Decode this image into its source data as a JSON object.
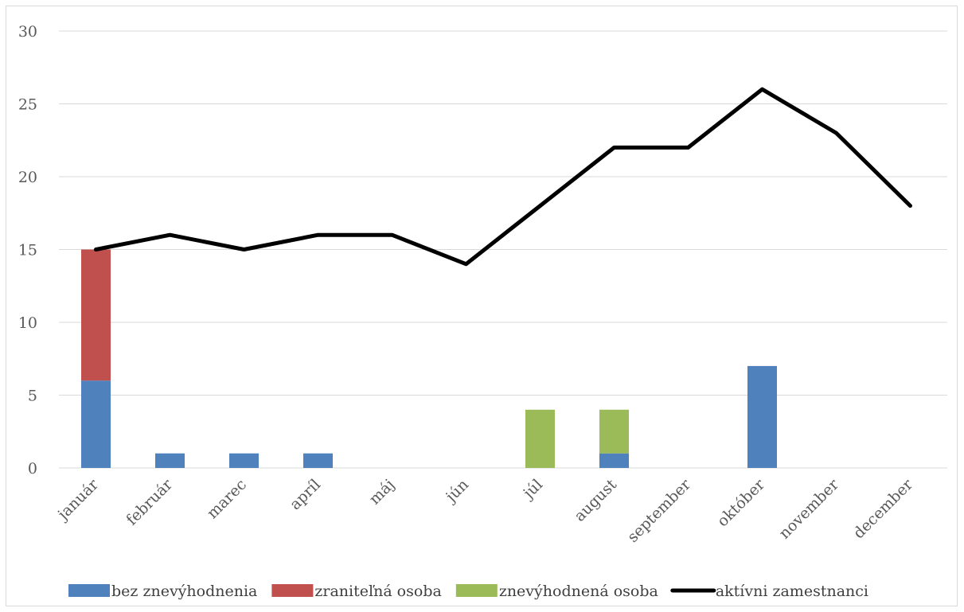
{
  "chart_data": {
    "type": "bar",
    "stacked": true,
    "categories": [
      "január",
      "február",
      "marec",
      "apríl",
      "máj",
      "jún",
      "júl",
      "august",
      "september",
      "október",
      "november",
      "december"
    ],
    "series": [
      {
        "name": "bez znevýhodnenia",
        "type": "bar",
        "color": "#4f81bd",
        "values": [
          6,
          1,
          1,
          1,
          0,
          0,
          0,
          1,
          0,
          7,
          0,
          0
        ]
      },
      {
        "name": "zraniteľná osoba",
        "type": "bar",
        "color": "#c0504d",
        "values": [
          9,
          0,
          0,
          0,
          0,
          0,
          0,
          0,
          0,
          0,
          0,
          0
        ]
      },
      {
        "name": "znevýhodnená osoba",
        "type": "bar",
        "color": "#9bbb59",
        "values": [
          0,
          0,
          0,
          0,
          0,
          0,
          4,
          3,
          0,
          0,
          0,
          0
        ]
      },
      {
        "name": "aktívni zamestnanci",
        "type": "line",
        "color": "#000000",
        "values": [
          15,
          16,
          15,
          16,
          16,
          14,
          18,
          22,
          22,
          26,
          23,
          18
        ]
      }
    ],
    "ylim": [
      0,
      30
    ],
    "yticks": [
      0,
      5,
      10,
      15,
      20,
      25,
      30
    ],
    "grid": true,
    "legend_position": "bottom",
    "title": "",
    "xlabel": "",
    "ylabel": ""
  }
}
